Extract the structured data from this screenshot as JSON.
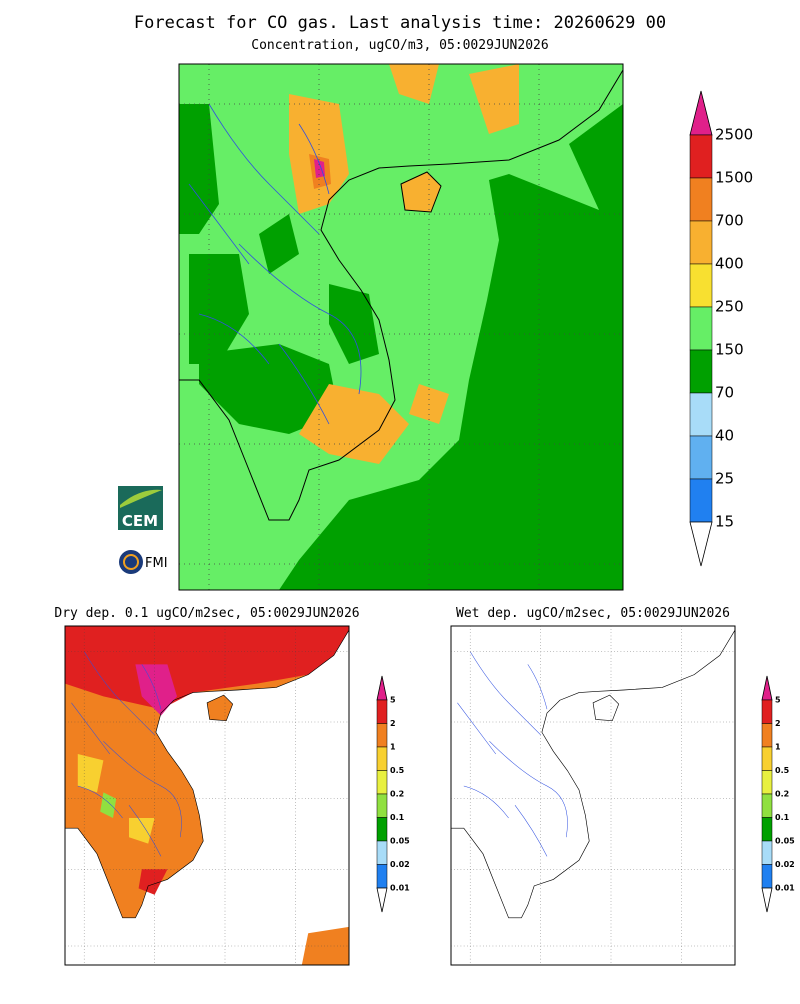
{
  "header": {
    "title": "Forecast for CO gas. Last analysis time: 20260629 00"
  },
  "main_map": {
    "subtitle": "Concentration, ugCO/m3, 05:0029JUN2026",
    "legend": [
      "2500",
      "1500",
      "700",
      "400",
      "250",
      "150",
      "70",
      "40",
      "25",
      "15"
    ]
  },
  "dry_map": {
    "subtitle": "Dry dep. 0.1 ugCO/m2sec, 05:0029JUN2026",
    "legend": [
      "5",
      "2",
      "1",
      "0.5",
      "0.2",
      "0.1",
      "0.05",
      "0.02",
      "0.01"
    ]
  },
  "wet_map": {
    "subtitle": "Wet dep. ugCO/m2sec, 05:0029JUN2026",
    "legend": [
      "5",
      "2",
      "1",
      "0.5",
      "0.2",
      "0.1",
      "0.05",
      "0.02",
      "0.01"
    ]
  },
  "logos": [
    "CEM",
    "FMI"
  ]
}
